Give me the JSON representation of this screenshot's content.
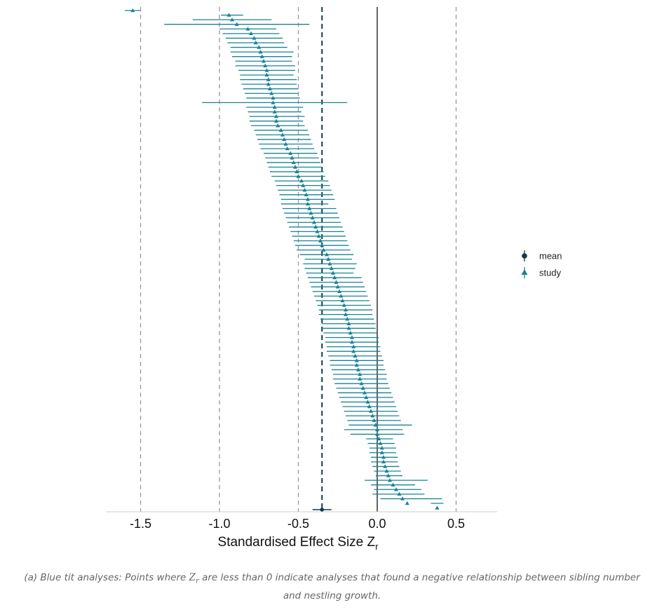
{
  "chart_data": {
    "type": "forest",
    "xlabel": "Standardised Effect Size Z",
    "xlabel_subscript": "r",
    "xlim": [
      -1.72,
      0.76
    ],
    "xticks": [
      -1.5,
      -1.0,
      -0.5,
      0.0,
      0.5
    ],
    "xtick_labels": [
      "-1.5",
      "-1.0",
      "-0.5",
      "0.0",
      "0.5"
    ],
    "zero_line": 0.0,
    "dashed_reference_lines": [
      -1.5,
      -1.0,
      -0.5,
      0.5
    ],
    "mean_line": -0.35,
    "legend_position": "right",
    "legend": [
      {
        "label": "mean",
        "marker": "circle",
        "color": "#0b3c4a"
      },
      {
        "label": "study",
        "marker": "triangle",
        "color": "#1a8294"
      }
    ],
    "colors": {
      "study": "#1a8294",
      "mean": "#0b3c4a"
    },
    "study_estimates": [
      -1.55,
      -0.94,
      -0.92,
      -0.89,
      -0.82,
      -0.8,
      -0.78,
      -0.77,
      -0.75,
      -0.74,
      -0.73,
      -0.72,
      -0.71,
      -0.7,
      -0.7,
      -0.69,
      -0.69,
      -0.68,
      -0.67,
      -0.66,
      -0.66,
      -0.65,
      -0.65,
      -0.64,
      -0.64,
      -0.63,
      -0.61,
      -0.6,
      -0.59,
      -0.58,
      -0.57,
      -0.55,
      -0.54,
      -0.53,
      -0.52,
      -0.51,
      -0.5,
      -0.48,
      -0.47,
      -0.46,
      -0.45,
      -0.44,
      -0.44,
      -0.43,
      -0.42,
      -0.41,
      -0.4,
      -0.39,
      -0.38,
      -0.37,
      -0.36,
      -0.35,
      -0.34,
      -0.32,
      -0.31,
      -0.3,
      -0.29,
      -0.28,
      -0.27,
      -0.26,
      -0.25,
      -0.24,
      -0.23,
      -0.22,
      -0.21,
      -0.2,
      -0.2,
      -0.19,
      -0.18,
      -0.18,
      -0.17,
      -0.16,
      -0.16,
      -0.15,
      -0.15,
      -0.14,
      -0.13,
      -0.13,
      -0.12,
      -0.11,
      -0.11,
      -0.1,
      -0.09,
      -0.08,
      -0.07,
      -0.06,
      -0.05,
      -0.04,
      -0.03,
      -0.02,
      -0.01,
      0.0,
      0.0,
      0.01,
      0.02,
      0.03,
      0.03,
      0.04,
      0.04,
      0.05,
      0.06,
      0.07,
      0.08,
      0.1,
      0.12,
      0.14,
      0.16,
      0.19,
      0.38
    ],
    "study_ci_low": [
      -1.6,
      -0.99,
      -1.17,
      -1.35,
      -1.0,
      -0.98,
      -0.96,
      -0.95,
      -0.93,
      -0.93,
      -0.92,
      -0.9,
      -0.9,
      -0.88,
      -0.87,
      -0.87,
      -0.86,
      -0.85,
      -0.84,
      -0.83,
      -1.11,
      -0.83,
      -0.82,
      -0.81,
      -0.81,
      -0.8,
      -0.78,
      -0.77,
      -0.76,
      -0.75,
      -0.74,
      -0.72,
      -0.71,
      -0.7,
      -0.69,
      -0.68,
      -0.67,
      -0.65,
      -0.64,
      -0.63,
      -0.62,
      -0.61,
      -0.61,
      -0.6,
      -0.59,
      -0.58,
      -0.57,
      -0.56,
      -0.55,
      -0.54,
      -0.53,
      -0.52,
      -0.51,
      -0.49,
      -0.46,
      -0.47,
      -0.46,
      -0.45,
      -0.44,
      -0.43,
      -0.42,
      -0.41,
      -0.4,
      -0.39,
      -0.38,
      -0.37,
      -0.37,
      -0.36,
      -0.35,
      -0.35,
      -0.34,
      -0.33,
      -0.33,
      -0.32,
      -0.32,
      -0.31,
      -0.3,
      -0.3,
      -0.29,
      -0.28,
      -0.28,
      -0.27,
      -0.26,
      -0.25,
      -0.24,
      -0.23,
      -0.22,
      -0.21,
      -0.2,
      -0.19,
      -0.18,
      -0.21,
      -0.17,
      -0.07,
      -0.06,
      -0.05,
      -0.05,
      -0.04,
      -0.04,
      -0.03,
      -0.02,
      -0.01,
      -0.08,
      -0.04,
      -0.02,
      -0.03,
      0.02,
      0.34
    ],
    "study_ci_high": [
      -1.5,
      -0.85,
      -0.67,
      -0.43,
      -0.64,
      -0.62,
      -0.6,
      -0.59,
      -0.57,
      -0.53,
      -0.54,
      -0.54,
      -0.52,
      -0.52,
      -0.53,
      -0.51,
      -0.51,
      -0.5,
      -0.5,
      -0.49,
      -0.19,
      -0.47,
      -0.48,
      -0.46,
      -0.47,
      -0.46,
      -0.44,
      -0.43,
      -0.42,
      -0.41,
      -0.4,
      -0.38,
      -0.37,
      -0.36,
      -0.35,
      -0.34,
      -0.33,
      -0.31,
      -0.3,
      -0.29,
      -0.28,
      -0.27,
      -0.31,
      -0.26,
      -0.25,
      -0.24,
      -0.23,
      -0.22,
      -0.21,
      -0.2,
      -0.19,
      -0.18,
      -0.17,
      -0.15,
      -0.16,
      -0.13,
      -0.14,
      -0.15,
      -0.1,
      -0.09,
      -0.08,
      -0.07,
      -0.06,
      -0.05,
      -0.04,
      -0.03,
      -0.03,
      -0.02,
      -0.01,
      -0.01,
      0.0,
      0.01,
      0.01,
      0.02,
      0.02,
      0.03,
      0.04,
      0.04,
      0.05,
      0.06,
      0.06,
      0.07,
      0.08,
      0.09,
      0.1,
      0.11,
      0.12,
      0.13,
      0.14,
      0.15,
      0.22,
      0.16,
      0.17,
      0.1,
      0.11,
      0.12,
      0.12,
      0.13,
      0.13,
      0.14,
      0.15,
      0.16,
      0.32,
      0.24,
      0.28,
      0.3,
      0.41,
      0.42
    ],
    "mean": {
      "estimate": -0.35,
      "ci_low": -0.41,
      "ci_high": -0.29
    }
  },
  "caption": {
    "before": "(a) Blue tit analyses: Points where ",
    "symbol": "Z",
    "symbol_sub": "r",
    "after": " are less than 0 indicate analyses that found a negative relationship between sibling number and nestling growth."
  }
}
